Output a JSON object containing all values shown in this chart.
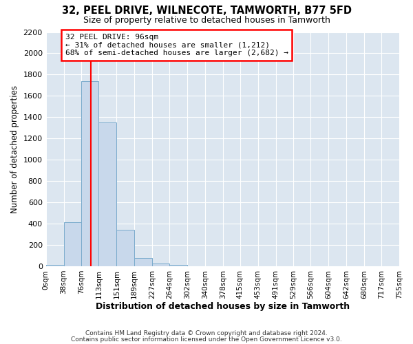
{
  "title": "32, PEEL DRIVE, WILNECOTE, TAMWORTH, B77 5FD",
  "subtitle": "Size of property relative to detached houses in Tamworth",
  "xlabel": "Distribution of detached houses by size in Tamworth",
  "ylabel": "Number of detached properties",
  "bar_color": "#c8d8eb",
  "bar_edge_color": "#7aabcc",
  "axes_bg_color": "#dce6f0",
  "fig_bg_color": "#ffffff",
  "grid_color": "#ffffff",
  "bin_edges": [
    0,
    38,
    76,
    113,
    151,
    189,
    227,
    264,
    302,
    340,
    378,
    415,
    453,
    491,
    529,
    566,
    604,
    642,
    680,
    717,
    755
  ],
  "bin_labels": [
    "0sqm",
    "38sqm",
    "76sqm",
    "113sqm",
    "151sqm",
    "189sqm",
    "227sqm",
    "264sqm",
    "302sqm",
    "340sqm",
    "378sqm",
    "415sqm",
    "453sqm",
    "491sqm",
    "529sqm",
    "566sqm",
    "604sqm",
    "642sqm",
    "680sqm",
    "717sqm",
    "755sqm"
  ],
  "bar_heights": [
    15,
    415,
    1740,
    1350,
    340,
    75,
    25,
    10,
    0,
    0,
    0,
    0,
    0,
    0,
    0,
    0,
    0,
    0,
    0,
    0
  ],
  "red_line_x": 96,
  "annotation_title": "32 PEEL DRIVE: 96sqm",
  "annotation_line1": "← 31% of detached houses are smaller (1,212)",
  "annotation_line2": "68% of semi-detached houses are larger (2,682) →",
  "ylim": [
    0,
    2200
  ],
  "yticks": [
    0,
    200,
    400,
    600,
    800,
    1000,
    1200,
    1400,
    1600,
    1800,
    2000,
    2200
  ],
  "footnote1": "Contains HM Land Registry data © Crown copyright and database right 2024.",
  "footnote2": "Contains public sector information licensed under the Open Government Licence v3.0."
}
